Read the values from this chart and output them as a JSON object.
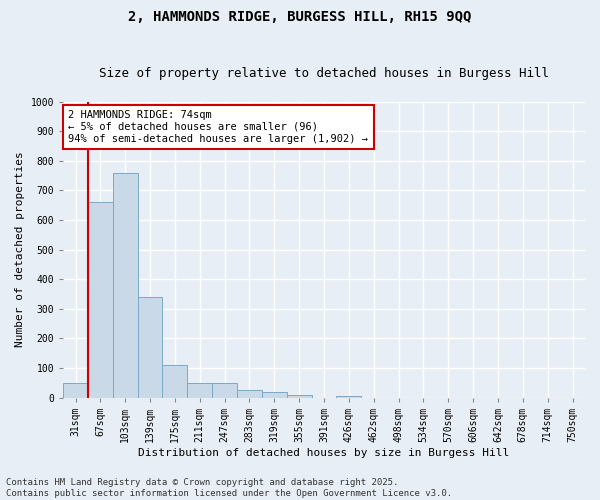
{
  "title_line1": "2, HAMMONDS RIDGE, BURGESS HILL, RH15 9QQ",
  "title_line2": "Size of property relative to detached houses in Burgess Hill",
  "xlabel": "Distribution of detached houses by size in Burgess Hill",
  "ylabel": "Number of detached properties",
  "categories": [
    "31sqm",
    "67sqm",
    "103sqm",
    "139sqm",
    "175sqm",
    "211sqm",
    "247sqm",
    "283sqm",
    "319sqm",
    "355sqm",
    "391sqm",
    "426sqm",
    "462sqm",
    "498sqm",
    "534sqm",
    "570sqm",
    "606sqm",
    "642sqm",
    "678sqm",
    "714sqm",
    "750sqm"
  ],
  "values": [
    50,
    660,
    760,
    340,
    110,
    50,
    50,
    25,
    18,
    10,
    0,
    5,
    0,
    0,
    0,
    0,
    0,
    0,
    0,
    0,
    0
  ],
  "bar_color": "#c9d9e8",
  "bar_edge_color": "#7aaac8",
  "vline_x_index": 1,
  "annotation_text_line1": "2 HAMMONDS RIDGE: 74sqm",
  "annotation_text_line2": "← 5% of detached houses are smaller (96)",
  "annotation_text_line3": "94% of semi-detached houses are larger (1,902) →",
  "annotation_box_facecolor": "#ffffff",
  "annotation_box_edgecolor": "#cc0000",
  "vline_color": "#cc0000",
  "ylim": [
    0,
    1000
  ],
  "yticks": [
    0,
    100,
    200,
    300,
    400,
    500,
    600,
    700,
    800,
    900,
    1000
  ],
  "footer_line1": "Contains HM Land Registry data © Crown copyright and database right 2025.",
  "footer_line2": "Contains public sector information licensed under the Open Government Licence v3.0.",
  "background_color": "#e8eef5",
  "grid_color": "#ffffff",
  "title_fontsize": 10,
  "subtitle_fontsize": 9,
  "axis_label_fontsize": 8,
  "tick_fontsize": 7,
  "annotation_fontsize": 7.5,
  "footer_fontsize": 6.5
}
